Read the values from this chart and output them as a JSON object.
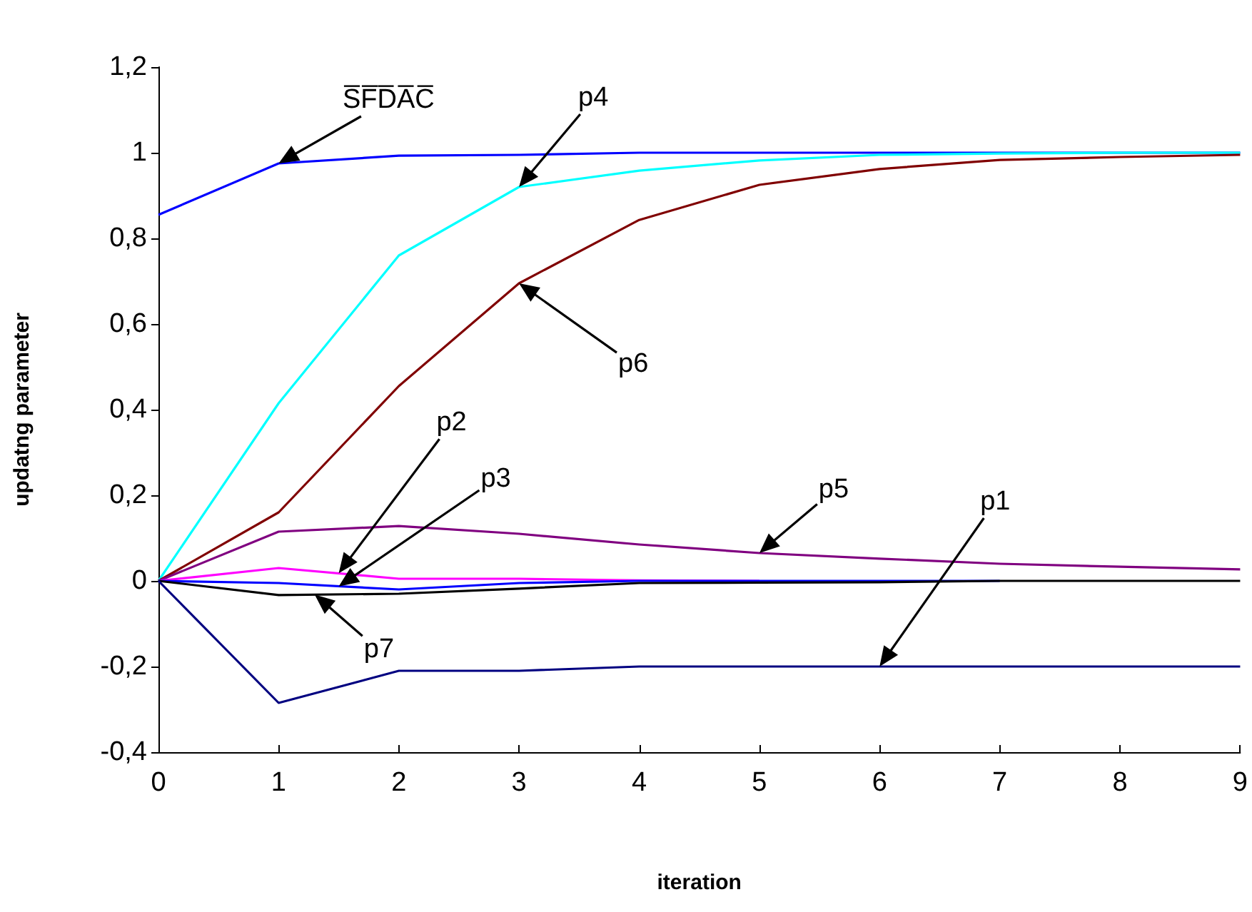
{
  "chart_data": {
    "type": "line",
    "xlabel": "iteration",
    "ylabel": "updatng parameter",
    "x": [
      0,
      1,
      2,
      3,
      4,
      5,
      6,
      7,
      8,
      9
    ],
    "series": [
      {
        "color": "#0000ff",
        "values": [
          0.855,
          0.975,
          0.993,
          0.995,
          1,
          1,
          1,
          1,
          1,
          1
        ]
      },
      {
        "color": "#00ffff",
        "values": [
          0,
          0.415,
          0.76,
          0.92,
          0.958,
          0.982,
          0.995,
          0.998,
          1,
          1
        ]
      },
      {
        "color": "#800000",
        "values": [
          0,
          0.16,
          0.455,
          0.695,
          0.843,
          0.925,
          0.962,
          0.983,
          0.99,
          0.995
        ]
      },
      {
        "color": "#800080",
        "values": [
          0,
          0.115,
          0.128,
          0.11,
          0.085,
          0.065,
          0.052,
          0.04,
          0.033,
          0.027
        ]
      },
      {
        "color": "#ff00ff",
        "values": [
          0,
          0.03,
          0.005,
          0.005,
          0.001,
          0,
          null,
          null,
          null,
          null
        ]
      },
      {
        "color": "#0000ff",
        "values": [
          0,
          -0.005,
          -0.02,
          -0.005,
          0,
          0,
          0,
          0,
          null,
          null
        ]
      },
      {
        "color": "#000000",
        "values": [
          0,
          -0.033,
          -0.03,
          -0.018,
          -0.005,
          -0.004,
          -0.003,
          0,
          0,
          0
        ]
      },
      {
        "color": "#000080",
        "values": [
          0,
          -0.285,
          -0.21,
          -0.21,
          -0.2,
          -0.2,
          -0.2,
          -0.2,
          -0.2,
          -0.2
        ]
      }
    ],
    "xlim": [
      0,
      9
    ],
    "xticks": [
      0,
      1,
      2,
      3,
      4,
      5,
      6,
      7,
      8,
      9
    ],
    "ylim": [
      -0.4,
      1.2
    ],
    "yticks": [
      {
        "value": -0.4,
        "label": "-0,4"
      },
      {
        "value": -0.2,
        "label": "-0,2"
      },
      {
        "value": 0,
        "label": "0"
      },
      {
        "value": 0.2,
        "label": "0,2"
      },
      {
        "value": 0.4,
        "label": "0,4"
      },
      {
        "value": 0.6,
        "label": "0,6"
      },
      {
        "value": 0.8,
        "label": "0,8"
      },
      {
        "value": 1,
        "label": "1"
      },
      {
        "value": 1.2,
        "label": "1,2"
      }
    ],
    "marker": "none",
    "line_style": "solid",
    "annotations": [
      {
        "text": "S̅F̅D̅A̅C̅",
        "x": 1,
        "y": 0.975
      },
      {
        "text": "p4",
        "x": 3,
        "y": 0.92
      },
      {
        "text": "p6",
        "x": 3,
        "y": 0.695
      },
      {
        "text": "p2",
        "x": 1.5,
        "y": 0.018
      },
      {
        "text": "p3",
        "x": 1.5,
        "y": -0.013
      },
      {
        "text": "p5",
        "x": 5,
        "y": 0.065
      },
      {
        "text": "p1",
        "x": 6,
        "y": -0.2
      },
      {
        "text": "p7",
        "x": 1.3,
        "y": -0.032
      }
    ]
  }
}
